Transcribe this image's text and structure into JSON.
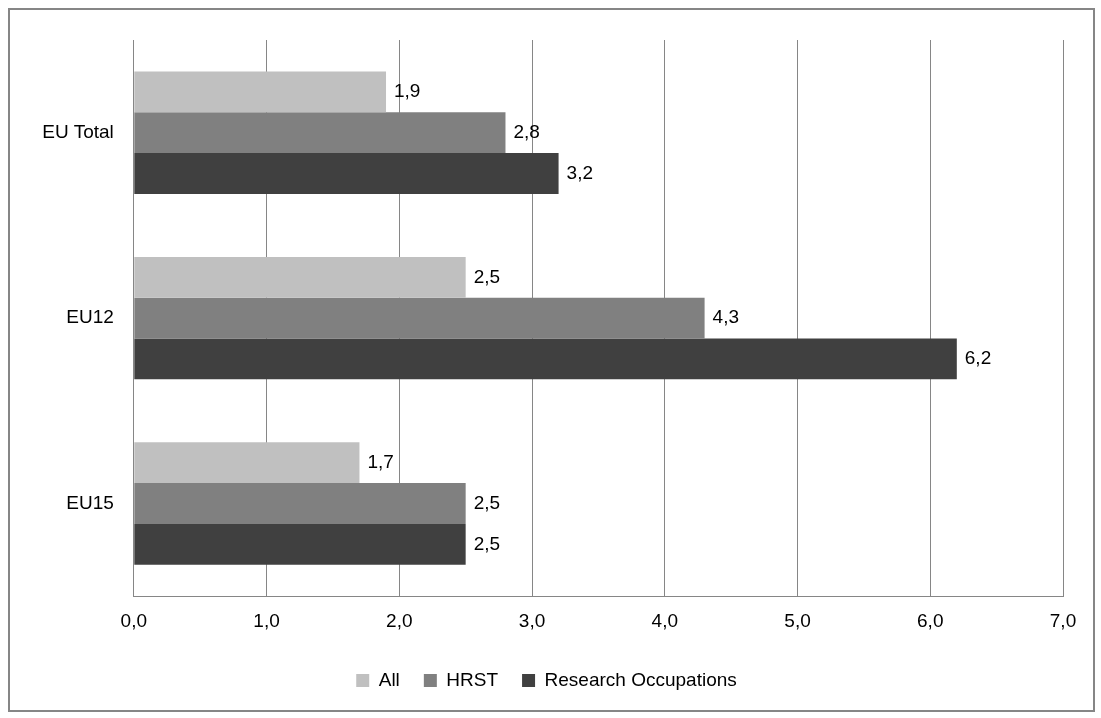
{
  "chart_data": {
    "type": "bar",
    "orientation": "horizontal",
    "categories": [
      "EU Total",
      "EU12",
      "EU15"
    ],
    "series": [
      {
        "name": "All",
        "color": "#c0c0c0",
        "values": [
          1.9,
          2.5,
          1.7
        ],
        "value_labels": [
          "1,9",
          "2,5",
          "1,7"
        ]
      },
      {
        "name": "HRST",
        "color": "#808080",
        "values": [
          2.8,
          4.3,
          2.5
        ],
        "value_labels": [
          "2,8",
          "4,3",
          "2,5"
        ]
      },
      {
        "name": "Research Occupations",
        "color": "#404040",
        "values": [
          3.2,
          6.2,
          2.5
        ],
        "value_labels": [
          "3,2",
          "6,2",
          "2,5"
        ]
      }
    ],
    "xlim": [
      0,
      7
    ],
    "xticks": [
      {
        "value": 0,
        "label": "0,0"
      },
      {
        "value": 1,
        "label": "1,0"
      },
      {
        "value": 2,
        "label": "2,0"
      },
      {
        "value": 3,
        "label": "3,0"
      },
      {
        "value": 4,
        "label": "4,0"
      },
      {
        "value": 5,
        "label": "5,0"
      },
      {
        "value": 6,
        "label": "6,0"
      },
      {
        "value": 7,
        "label": "7,0"
      }
    ],
    "grid": "x",
    "legend": "bottom"
  }
}
